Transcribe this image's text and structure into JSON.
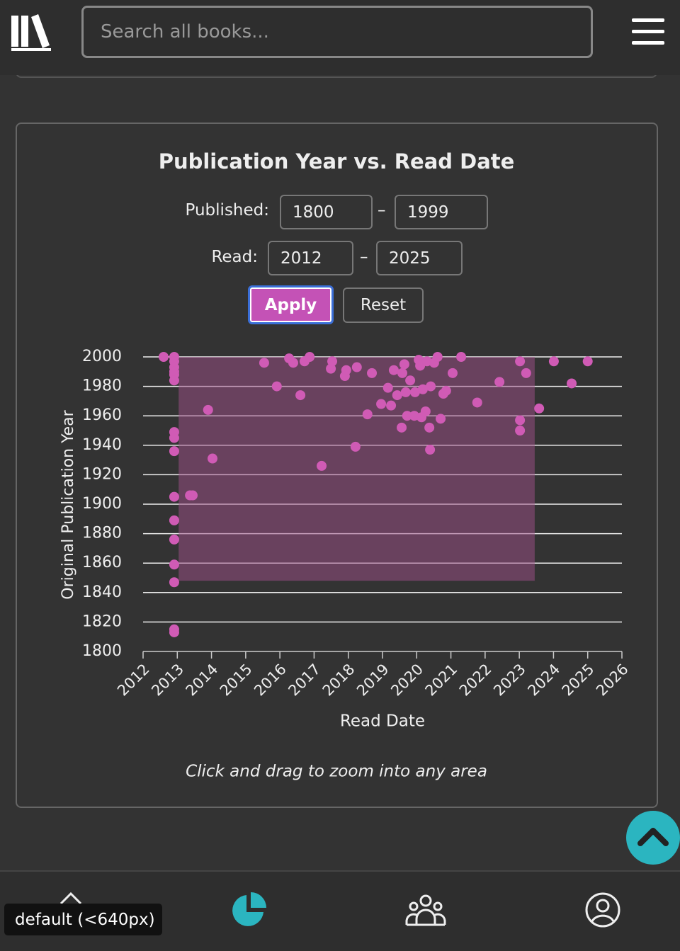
{
  "header": {
    "search_placeholder": "Search all books..."
  },
  "filters": {
    "published_label": "Published:",
    "published_from": "1800",
    "published_to": "1999",
    "range_separator": "–",
    "read_label": "Read:",
    "read_from": "2012",
    "read_to": "2025",
    "apply": "Apply",
    "reset": "Reset"
  },
  "chart_data": {
    "type": "scatter",
    "title": "Publication Year vs. Read Date",
    "x_label": "Read Date",
    "y_label": "Original Publication Year",
    "xlim": [
      2012,
      2026
    ],
    "xticks": [
      2012,
      2013,
      2014,
      2015,
      2016,
      2017,
      2018,
      2019,
      2020,
      2021,
      2022,
      2023,
      2024,
      2025,
      2026
    ],
    "ylim": [
      1800,
      2000
    ],
    "yticks": [
      1800,
      1820,
      1840,
      1860,
      1880,
      1900,
      1920,
      1940,
      1960,
      1980,
      2000
    ],
    "grid": true,
    "shaded_region": {
      "xlim": [
        2013.04,
        2023.45
      ],
      "ylim": [
        1848,
        2000
      ],
      "color": "#a0508a"
    },
    "series": [
      {
        "color": "#d05bb5",
        "x": [
          2012.6,
          2012.91,
          2012.91,
          2012.91,
          2012.91,
          2012.91,
          2012.91,
          2012.91,
          2012.91,
          2012.91,
          2012.91,
          2012.91,
          2012.91,
          2012.91,
          2012.91,
          2012.91,
          2012.91,
          2013.37,
          2013.45,
          2013.9,
          2014.03,
          2015.54,
          2015.91,
          2016.27,
          2016.39,
          2016.6,
          2016.72,
          2016.87,
          2017.22,
          2017.49,
          2017.53,
          2017.9,
          2017.94,
          2018.21,
          2018.25,
          2018.56,
          2018.69,
          2018.96,
          2019.16,
          2019.25,
          2019.33,
          2019.43,
          2019.56,
          2019.58,
          2019.64,
          2019.68,
          2019.72,
          2019.81,
          2019.93,
          2019.95,
          2020.06,
          2020.1,
          2020.14,
          2020.18,
          2020.26,
          2020.3,
          2020.37,
          2020.39,
          2020.41,
          2020.51,
          2020.61,
          2020.7,
          2020.78,
          2020.86,
          2021.05,
          2021.3,
          2021.77,
          2022.42,
          2023.02,
          2023.02,
          2023.02,
          2023.2,
          2023.58,
          2024.01,
          2024.53,
          2025.0
        ],
        "values": [
          2000,
          2000,
          1997,
          1993,
          1990,
          1988,
          1984,
          1949,
          1945,
          1936,
          1905,
          1889,
          1876,
          1859,
          1847,
          1815,
          1813,
          1906,
          1906,
          1964,
          1931,
          1996,
          1980,
          1999,
          1996,
          1974,
          1997,
          2000,
          1926,
          1992,
          1997,
          1987,
          1991,
          1939,
          1993,
          1961,
          1989,
          1968,
          1979,
          1967,
          1991,
          1974,
          1952,
          1989,
          1995,
          1976,
          1960,
          1984,
          1960,
          1976,
          1998,
          1994,
          1959,
          1978,
          1963,
          1997,
          1952,
          1937,
          1980,
          1996,
          2000,
          1958,
          1975,
          1977,
          1989,
          2000,
          1969,
          1983,
          1997,
          1957,
          1950,
          1989,
          1965,
          1997,
          1982,
          1997
        ]
      }
    ]
  },
  "hint": "Click and drag to zoom into any area",
  "badge": "default (<640px)"
}
